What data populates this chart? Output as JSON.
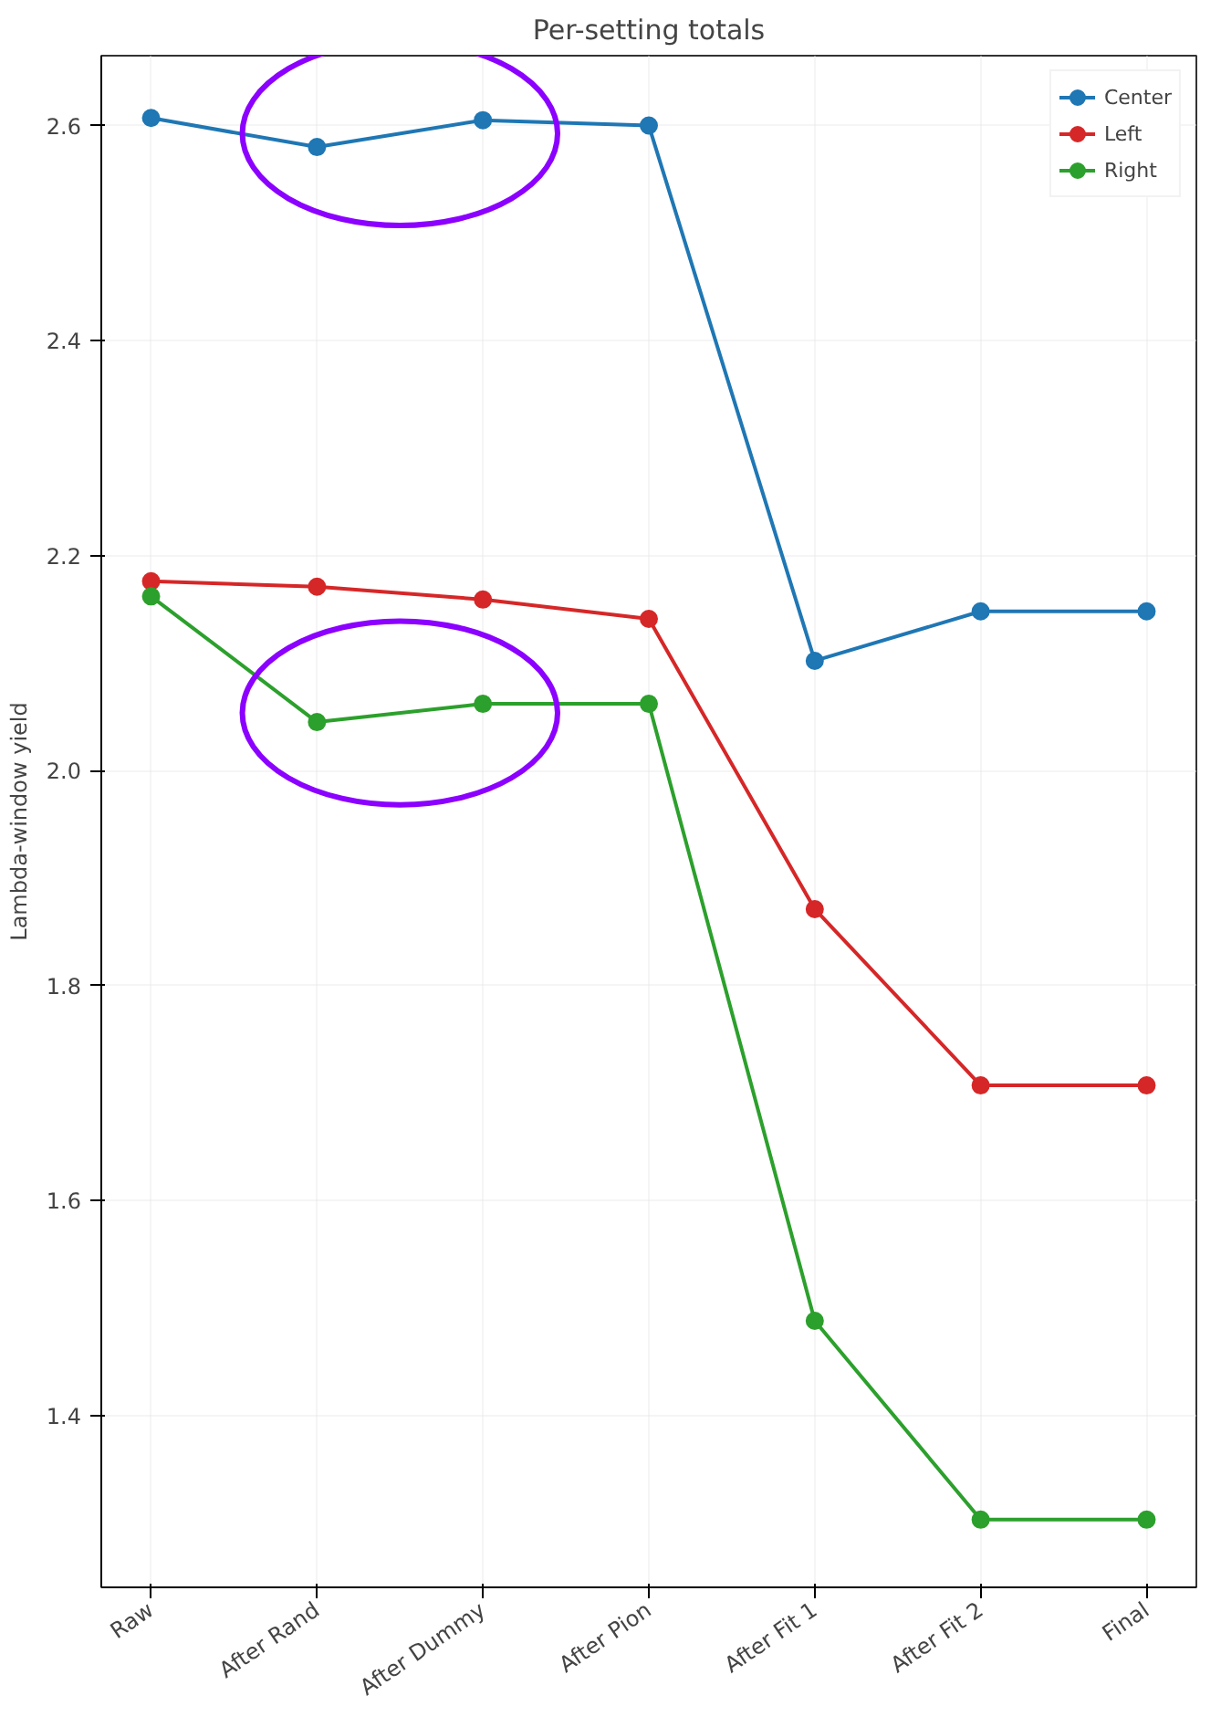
{
  "chart_data": {
    "type": "line",
    "title": "Per-setting totals",
    "ylabel": "Lambda-window yield",
    "categories": [
      "Raw",
      "After Rand",
      "After Dummy",
      "After Pion",
      "After Fit 1",
      "After Fit 2",
      "Final"
    ],
    "series": [
      {
        "name": "Center",
        "color": "#1f77b4",
        "values": [
          2.607,
          2.58,
          2.605,
          2.6,
          2.102,
          2.148,
          2.148
        ]
      },
      {
        "name": "Left",
        "color": "#d62728",
        "values": [
          2.176,
          2.171,
          2.159,
          2.141,
          1.871,
          1.707,
          1.707
        ]
      },
      {
        "name": "Right",
        "color": "#2ca02c",
        "values": [
          2.162,
          2.045,
          2.062,
          2.062,
          1.488,
          1.303,
          1.303
        ]
      }
    ],
    "ylim": [
      1.24,
      2.665
    ],
    "yticks": [
      1.4,
      1.6,
      1.8,
      {
        "value": 2,
        "label": "2.0"
      },
      2.2,
      2.4,
      2.6
    ],
    "grid": true,
    "legend": "top right",
    "marker": "circle",
    "line_style": "solid"
  }
}
